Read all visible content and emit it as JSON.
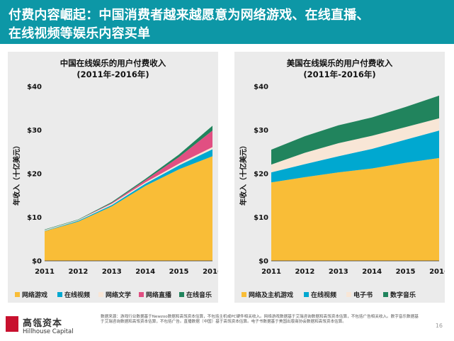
{
  "title": {
    "line1": "付费内容崛起：中国消费者越来越愿意为网络游戏、在线直播、",
    "line2": "在线视频等娱乐内容买单"
  },
  "footer": {
    "logo_cn": "高瓴资本",
    "logo_en": "Hillhouse Capital",
    "source": "数据来源：游戏行业数据基于Newzoo数据和高瓴资本估算，不包括主机或PC硬件相关收入。网络游戏数据基于艾瑞咨询数据和高瓴资本估算，不包括广告相关收入。数字音乐数据基于艾瑞咨询数据和高瓴资本估算，不包括广告。直播数据（中国）基于高瓴资本估算。电子书数据基于美国出版商协会数据和高瓴资本估算。",
    "page_number": "16"
  },
  "colors": {
    "title_bar": "#0d97a6",
    "panel_bg": "#ebebeb",
    "series": [
      "#f9bd37",
      "#00a8d0",
      "#f8e6d6",
      "#e14f82",
      "#21845d"
    ]
  },
  "chart_data": [
    {
      "type": "area",
      "stacked": true,
      "title": "中国在线娱乐的用户付费收入",
      "subtitle": "(2011年-2016年)",
      "ylabel": "年收入（十亿美元）",
      "xlabel": "",
      "x": [
        "2011",
        "2012",
        "2013",
        "2014",
        "2015",
        "2016"
      ],
      "yticks": [
        "$0",
        "$10",
        "$20",
        "$30",
        "$40"
      ],
      "ylim": [
        0,
        40
      ],
      "grid": false,
      "legend_position": "bottom",
      "series": [
        {
          "name": "网络游戏",
          "color": "#f9bd37",
          "values": [
            6.8,
            9.0,
            12.5,
            17.2,
            21.0,
            24.0
          ]
        },
        {
          "name": "在线视频",
          "color": "#00a8d0",
          "values": [
            0.1,
            0.2,
            0.3,
            0.5,
            0.9,
            1.6
          ]
        },
        {
          "name": "网络文学",
          "color": "#f8e6d6",
          "values": [
            0.2,
            0.2,
            0.3,
            0.3,
            0.4,
            0.5
          ]
        },
        {
          "name": "网络直播",
          "color": "#e14f82",
          "values": [
            0.0,
            0.0,
            0.2,
            0.5,
            1.5,
            3.8
          ]
        },
        {
          "name": "在线音乐",
          "color": "#21845d",
          "values": [
            0.1,
            0.1,
            0.2,
            0.3,
            0.6,
            1.1
          ]
        }
      ]
    },
    {
      "type": "area",
      "stacked": true,
      "title": "美国在线娱乐的用户付费收入",
      "subtitle": "(2011年-2016年)",
      "ylabel": "年收入（十亿美元）",
      "xlabel": "",
      "x": [
        "2011",
        "2012",
        "2013",
        "2014",
        "2015",
        "2016"
      ],
      "yticks": [
        "$0",
        "$10",
        "$20",
        "$30",
        "$40"
      ],
      "ylim": [
        0,
        40
      ],
      "grid": false,
      "legend_position": "bottom",
      "series": [
        {
          "name": "网络及主机游戏",
          "color": "#f9bd37",
          "values": [
            18.0,
            19.2,
            20.3,
            21.2,
            22.5,
            23.6
          ]
        },
        {
          "name": "在线视频",
          "color": "#00a8d0",
          "values": [
            2.3,
            3.0,
            3.7,
            4.5,
            5.3,
            6.3
          ]
        },
        {
          "name": "电子书",
          "color": "#f8e6d6",
          "values": [
            1.8,
            2.6,
            3.0,
            3.0,
            2.9,
            2.8
          ]
        },
        {
          "name": "数字音乐",
          "color": "#21845d",
          "values": [
            3.4,
            3.8,
            4.1,
            4.2,
            4.6,
            5.2
          ]
        }
      ]
    }
  ]
}
